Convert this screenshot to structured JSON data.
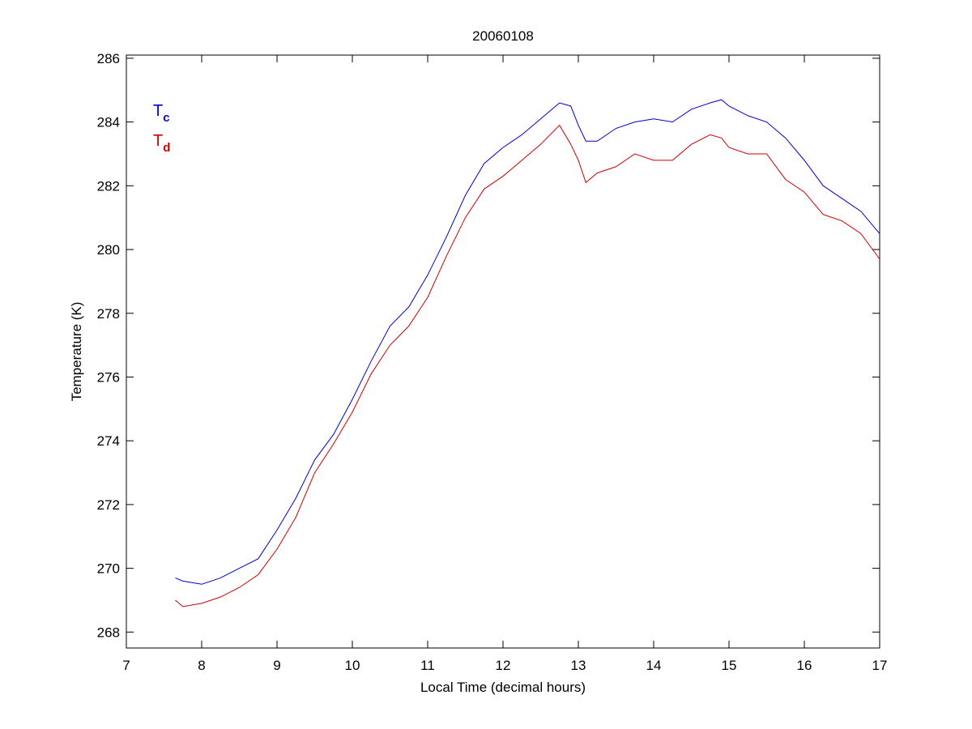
{
  "chart_data": {
    "type": "line",
    "title": "20060108",
    "x_label": "Local Time (decimal hours)",
    "y_label": "Temperature (K)",
    "x": [
      7.65,
      7.75,
      8.0,
      8.25,
      8.5,
      8.75,
      9.0,
      9.25,
      9.5,
      9.75,
      10.0,
      10.25,
      10.5,
      10.75,
      11.0,
      11.25,
      11.5,
      11.75,
      12.0,
      12.25,
      12.5,
      12.75,
      12.9,
      13.0,
      13.1,
      13.25,
      13.5,
      13.75,
      14.0,
      14.25,
      14.5,
      14.75,
      14.9,
      15.0,
      15.25,
      15.5,
      15.75,
      16.0,
      16.25,
      16.5,
      16.75,
      17.0
    ],
    "series": [
      {
        "name": "Tc",
        "color": "#0000cc",
        "values": [
          269.7,
          269.6,
          269.5,
          269.7,
          270.0,
          270.3,
          271.2,
          272.2,
          273.4,
          274.2,
          275.3,
          276.5,
          277.6,
          278.2,
          279.2,
          280.4,
          281.7,
          282.7,
          283.2,
          283.6,
          284.1,
          284.6,
          284.5,
          283.9,
          283.4,
          283.4,
          283.8,
          284.0,
          284.1,
          284.0,
          284.4,
          284.6,
          284.7,
          284.5,
          284.2,
          284.0,
          283.5,
          282.8,
          282.0,
          281.6,
          281.2,
          280.5
        ]
      },
      {
        "name": "Td",
        "color": "#cc0000",
        "values": [
          269.0,
          268.8,
          268.9,
          269.1,
          269.4,
          269.8,
          270.6,
          271.6,
          273.0,
          273.9,
          274.9,
          276.1,
          277.0,
          277.6,
          278.5,
          279.8,
          281.0,
          281.9,
          282.3,
          282.8,
          283.3,
          283.9,
          283.3,
          282.8,
          282.1,
          282.4,
          282.6,
          283.0,
          282.8,
          282.8,
          283.3,
          283.6,
          283.5,
          283.2,
          283.0,
          283.0,
          282.2,
          281.8,
          281.1,
          280.9,
          280.5,
          279.7
        ]
      }
    ],
    "xlim": [
      7,
      17
    ],
    "xticks": [
      7,
      8,
      9,
      10,
      11,
      12,
      13,
      14,
      15,
      16,
      17
    ],
    "ylim": [
      267.5,
      286.1
    ],
    "yticks": [
      268,
      270,
      272,
      274,
      276,
      278,
      280,
      282,
      284,
      286
    ],
    "legend": "top-left",
    "grid": false
  }
}
